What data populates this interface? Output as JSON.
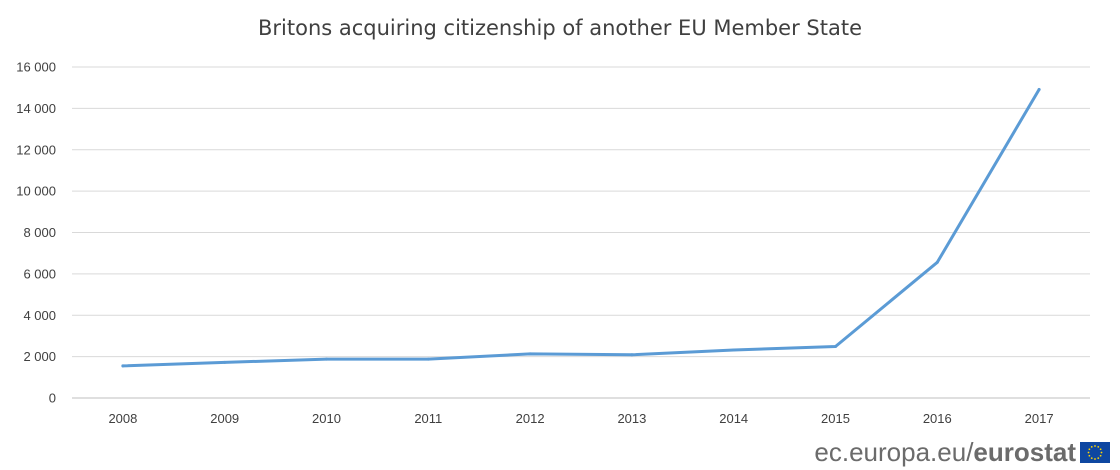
{
  "chart_data": {
    "type": "line",
    "title": "Britons acquiring citizenship of another EU Member State",
    "xlabel": "",
    "ylabel": "",
    "categories": [
      "2008",
      "2009",
      "2010",
      "2011",
      "2012",
      "2013",
      "2014",
      "2015",
      "2016",
      "2017"
    ],
    "series": [
      {
        "name": "Britons acquiring citizenship",
        "color": "#5b9bd5",
        "values": [
          1550,
          1720,
          1880,
          1880,
          2130,
          2090,
          2320,
          2490,
          6560,
          14910
        ]
      }
    ],
    "ylim": [
      0,
      16000
    ],
    "yticks": [
      0,
      2000,
      4000,
      6000,
      8000,
      10000,
      12000,
      14000,
      16000
    ],
    "ytick_labels": [
      "0",
      "2 000",
      "4 000",
      "6 000",
      "8 000",
      "10 000",
      "12 000",
      "14 000",
      "16 000"
    ],
    "grid": true,
    "legend": "none"
  },
  "footer": {
    "site": "ec.europa.eu",
    "slash": "/",
    "brand": "eurostat",
    "flag_icon": "eu-flag-icon"
  },
  "colors": {
    "grid": "#d9d9d9",
    "text": "#404040",
    "flag_blue": "#0e47a1",
    "flag_star": "#ffd600"
  }
}
